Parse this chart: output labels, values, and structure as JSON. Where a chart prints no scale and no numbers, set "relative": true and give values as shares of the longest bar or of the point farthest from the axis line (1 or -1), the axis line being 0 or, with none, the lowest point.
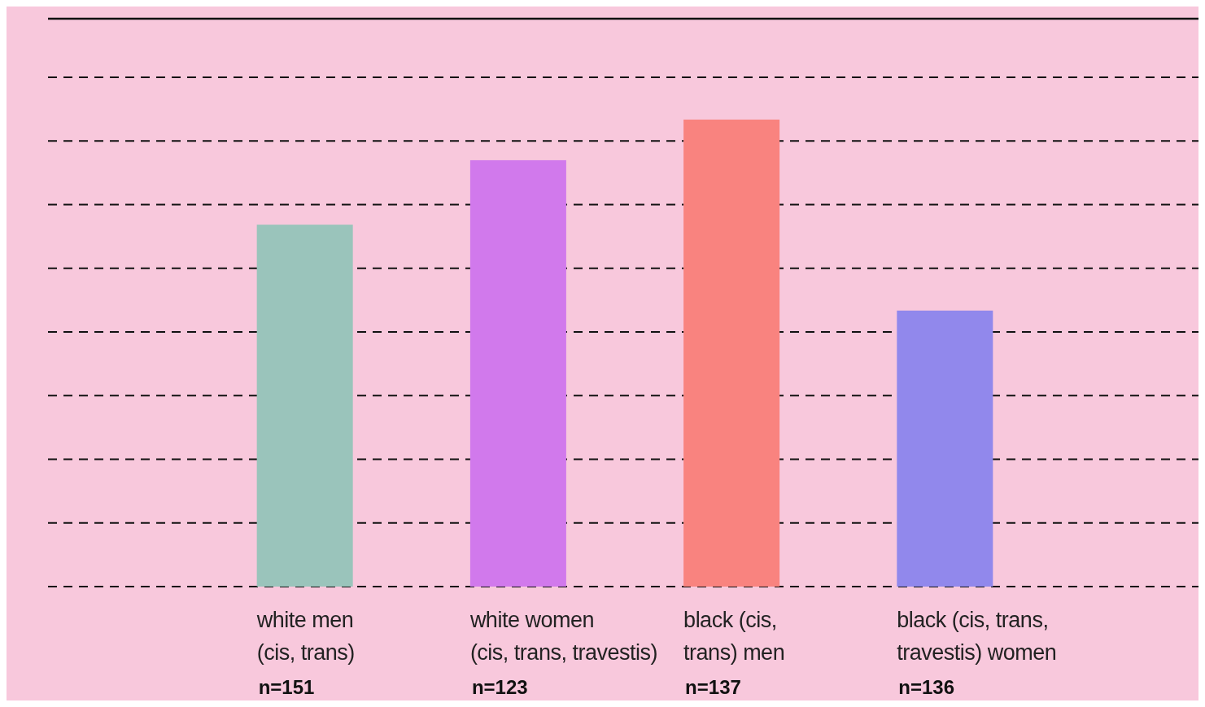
{
  "chart_data": {
    "type": "bar",
    "relative": true,
    "categories": [
      "white men\n(cis, trans)",
      "white women\n(cis, trans, travestis)",
      "black (cis,\ntrans) men",
      "black (cis, trans,\ntravestis) women"
    ],
    "values": [
      0.775,
      0.913,
      1,
      0.591
    ],
    "colors": [
      "#9ac4bb",
      "#d179ec",
      "#f9837f",
      "#9188ec"
    ],
    "annotations": [
      "n=151",
      "n=123",
      "n=137",
      "n=136"
    ],
    "grid": "y"
  }
}
